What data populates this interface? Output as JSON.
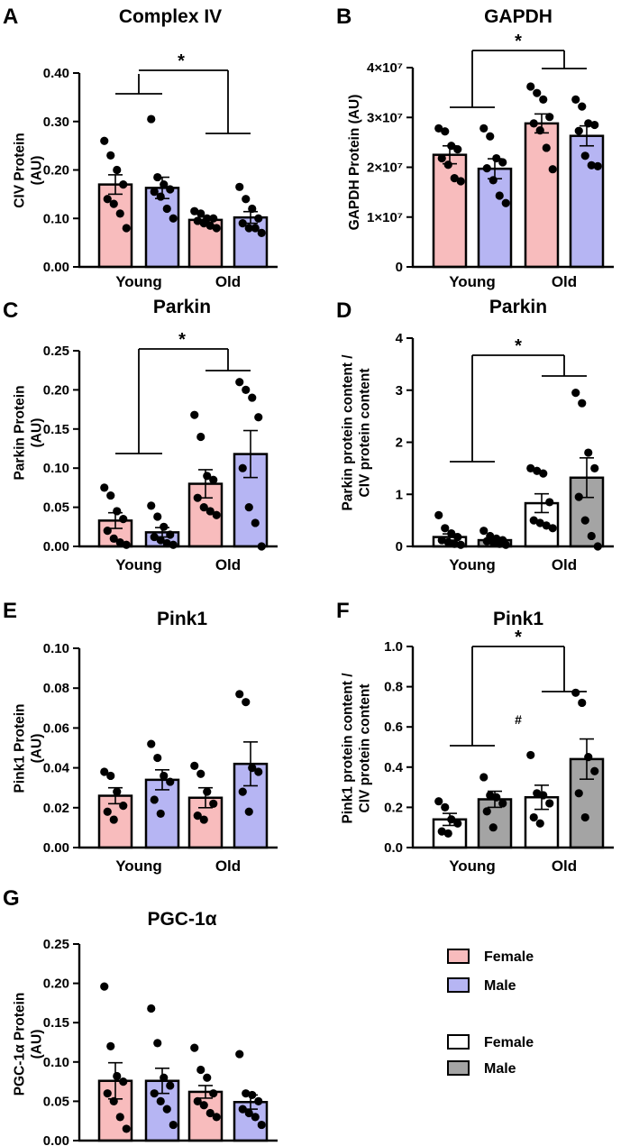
{
  "figure": {
    "legend": {
      "entries": [
        {
          "label": "Female",
          "color": "#f8bcbd"
        },
        {
          "label": "Male",
          "color": "#b6b5f3"
        },
        {
          "label": "Female",
          "color": "#ffffff"
        },
        {
          "label": "Male",
          "color": "#a4a4a4"
        }
      ]
    },
    "colors": {
      "female": "#f8bcbd",
      "male": "#b6b5f3",
      "white": "#ffffff",
      "gray": "#a4a4a4",
      "ink": "#000000"
    }
  },
  "chart_data": [
    {
      "panel": "A",
      "type": "bar",
      "title": "Complex IV",
      "ylabel": [
        "CIV Protein",
        "(AU)"
      ],
      "ylim": [
        0,
        0.4
      ],
      "yticks": [
        0,
        0.1,
        0.2,
        0.3,
        0.4
      ],
      "ytick_labels": [
        "0.00",
        "0.10",
        "0.20",
        "0.30",
        "0.40"
      ],
      "xgroups": [
        "Young",
        "Old"
      ],
      "annotations": [
        {
          "text": "*"
        }
      ],
      "bars": [
        {
          "series": "Female",
          "group": "Young",
          "mean": 0.17,
          "sem": 0.02,
          "color": "#f8bcbd",
          "points": [
            0.26,
            0.23,
            0.2,
            0.17,
            0.14,
            0.13,
            0.11,
            0.08
          ]
        },
        {
          "series": "Male",
          "group": "Young",
          "mean": 0.163,
          "sem": 0.022,
          "color": "#b6b5f3",
          "points": [
            0.305,
            0.185,
            0.17,
            0.16,
            0.155,
            0.145,
            0.12,
            0.1
          ]
        },
        {
          "series": "Female",
          "group": "Old",
          "mean": 0.097,
          "sem": 0.006,
          "color": "#f8bcbd",
          "points": [
            0.115,
            0.11,
            0.1,
            0.1,
            0.095,
            0.09,
            0.085,
            0.08
          ]
        },
        {
          "series": "Male",
          "group": "Old",
          "mean": 0.102,
          "sem": 0.012,
          "color": "#b6b5f3",
          "points": [
            0.165,
            0.14,
            0.12,
            0.1,
            0.09,
            0.08,
            0.08,
            0.07
          ]
        }
      ]
    },
    {
      "panel": "B",
      "type": "bar",
      "title": "GAPDH",
      "ylabel": [
        "GAPDH Protein (AU)"
      ],
      "ylim": [
        0,
        40000000
      ],
      "yticks": [
        0,
        10000000,
        20000000,
        30000000,
        40000000
      ],
      "ytick_labels": [
        "0",
        "1×10⁷",
        "2×10⁷",
        "3×10⁷",
        "4×10⁷"
      ],
      "xgroups": [
        "Young",
        "Old"
      ],
      "annotations": [
        {
          "text": "*"
        }
      ],
      "bars": [
        {
          "series": "Female",
          "group": "Young",
          "mean": 22500000,
          "sem": 1800000,
          "color": "#f8bcbd",
          "points": [
            27800000,
            27200000,
            24300000,
            23600000,
            21800000,
            20500000,
            17800000,
            17200000
          ]
        },
        {
          "series": "Male",
          "group": "Young",
          "mean": 19700000,
          "sem": 2000000,
          "color": "#b6b5f3",
          "points": [
            27800000,
            26200000,
            21800000,
            21000000,
            19800000,
            17400000,
            14300000,
            12800000
          ]
        },
        {
          "series": "Female",
          "group": "Old",
          "mean": 28800000,
          "sem": 1900000,
          "color": "#f8bcbd",
          "points": [
            36200000,
            34900000,
            33600000,
            30100000,
            28800000,
            27400000,
            23900000,
            19600000
          ]
        },
        {
          "series": "Male",
          "group": "Old",
          "mean": 26300000,
          "sem": 2000000,
          "color": "#b6b5f3",
          "points": [
            33600000,
            32200000,
            28800000,
            28500000,
            27300000,
            22300000,
            20400000,
            20200000
          ]
        }
      ]
    },
    {
      "panel": "C",
      "type": "bar",
      "title": "Parkin",
      "ylabel": [
        "Parkin Protein",
        "(AU)"
      ],
      "ylim": [
        0,
        0.25
      ],
      "yticks": [
        0,
        0.05,
        0.1,
        0.15,
        0.2,
        0.25
      ],
      "ytick_labels": [
        "0.00",
        "0.05",
        "0.10",
        "0.15",
        "0.20",
        "0.25"
      ],
      "xgroups": [
        "Young",
        "Old"
      ],
      "annotations": [
        {
          "text": "*"
        }
      ],
      "bars": [
        {
          "series": "Female",
          "group": "Young",
          "mean": 0.033,
          "sem": 0.01,
          "color": "#f8bcbd",
          "points": [
            0.075,
            0.065,
            0.045,
            0.035,
            0.02,
            0.01,
            0.005,
            0.002
          ]
        },
        {
          "series": "Male",
          "group": "Young",
          "mean": 0.018,
          "sem": 0.006,
          "color": "#b6b5f3",
          "points": [
            0.052,
            0.038,
            0.025,
            0.015,
            0.012,
            0.008,
            0.004,
            0.002
          ]
        },
        {
          "series": "Female",
          "group": "Old",
          "mean": 0.08,
          "sem": 0.018,
          "color": "#f8bcbd",
          "points": [
            0.168,
            0.14,
            0.09,
            0.085,
            0.062,
            0.05,
            0.045,
            0.04
          ]
        },
        {
          "series": "Male",
          "group": "Old",
          "mean": 0.118,
          "sem": 0.03,
          "color": "#b6b5f3",
          "points": [
            0.21,
            0.2,
            0.19,
            0.165,
            0.1,
            0.05,
            0.03,
            0.0
          ]
        }
      ]
    },
    {
      "panel": "D",
      "type": "bar",
      "title": "Parkin",
      "ylabel": [
        "Parkin protein content /",
        "CIV protein content"
      ],
      "ylim": [
        0,
        4
      ],
      "yticks": [
        0,
        1,
        2,
        3,
        4
      ],
      "ytick_labels": [
        "0",
        "1",
        "2",
        "3",
        "4"
      ],
      "xgroups": [
        "Young",
        "Old"
      ],
      "annotations": [
        {
          "text": "*"
        }
      ],
      "bars": [
        {
          "series": "Female",
          "group": "Young",
          "mean": 0.18,
          "sem": 0.06,
          "color": "#ffffff",
          "points": [
            0.6,
            0.35,
            0.25,
            0.18,
            0.12,
            0.08,
            0.05,
            0.03
          ]
        },
        {
          "series": "Male",
          "group": "Young",
          "mean": 0.12,
          "sem": 0.03,
          "color": "#a4a4a4",
          "points": [
            0.3,
            0.2,
            0.15,
            0.12,
            0.1,
            0.08,
            0.05,
            0.03
          ]
        },
        {
          "series": "Female",
          "group": "Old",
          "mean": 0.83,
          "sem": 0.18,
          "color": "#ffffff",
          "points": [
            1.5,
            1.45,
            1.4,
            0.85,
            0.5,
            0.45,
            0.4,
            0.35
          ]
        },
        {
          "series": "Male",
          "group": "Old",
          "mean": 1.32,
          "sem": 0.38,
          "color": "#a4a4a4",
          "points": [
            2.95,
            2.75,
            1.8,
            1.5,
            0.95,
            0.5,
            0.2,
            0.0
          ]
        }
      ]
    },
    {
      "panel": "E",
      "type": "bar",
      "title": "Pink1",
      "ylabel": [
        "Pink1 Protein",
        "(AU)"
      ],
      "ylim": [
        0,
        0.1
      ],
      "yticks": [
        0,
        0.02,
        0.04,
        0.06,
        0.08,
        0.1
      ],
      "ytick_labels": [
        "0.00",
        "0.02",
        "0.04",
        "0.06",
        "0.08",
        "0.10"
      ],
      "xgroups": [
        "Young",
        "Old"
      ],
      "annotations": [],
      "bars": [
        {
          "series": "Female",
          "group": "Young",
          "mean": 0.026,
          "sem": 0.004,
          "color": "#f8bcbd",
          "points": [
            0.038,
            0.036,
            0.028,
            0.021,
            0.018,
            0.014
          ]
        },
        {
          "series": "Male",
          "group": "Young",
          "mean": 0.034,
          "sem": 0.005,
          "color": "#b6b5f3",
          "points": [
            0.052,
            0.045,
            0.036,
            0.033,
            0.024,
            0.017
          ]
        },
        {
          "series": "Female",
          "group": "Old",
          "mean": 0.025,
          "sem": 0.005,
          "color": "#f8bcbd",
          "points": [
            0.041,
            0.037,
            0.028,
            0.022,
            0.016,
            0.014
          ]
        },
        {
          "series": "Male",
          "group": "Old",
          "mean": 0.042,
          "sem": 0.011,
          "color": "#b6b5f3",
          "points": [
            0.077,
            0.073,
            0.04,
            0.038,
            0.028,
            0.018
          ]
        }
      ]
    },
    {
      "panel": "F",
      "type": "bar",
      "title": "Pink1",
      "ylabel": [
        "Pink1 protein content /",
        "CIV protein content"
      ],
      "ylim": [
        0,
        1.0
      ],
      "yticks": [
        0,
        0.2,
        0.4,
        0.6,
        0.8,
        1.0
      ],
      "ytick_labels": [
        "0.0",
        "0.2",
        "0.4",
        "0.6",
        "0.8",
        "1.0"
      ],
      "xgroups": [
        "Young",
        "Old"
      ],
      "annotations": [
        {
          "text": "*"
        },
        {
          "text": "#"
        }
      ],
      "bars": [
        {
          "series": "Female",
          "group": "Young",
          "mean": 0.14,
          "sem": 0.03,
          "color": "#ffffff",
          "points": [
            0.23,
            0.2,
            0.14,
            0.12,
            0.08,
            0.07
          ]
        },
        {
          "series": "Male",
          "group": "Young",
          "mean": 0.24,
          "sem": 0.04,
          "color": "#a4a4a4",
          "points": [
            0.35,
            0.26,
            0.25,
            0.22,
            0.18,
            0.1
          ]
        },
        {
          "series": "Female",
          "group": "Old",
          "mean": 0.25,
          "sem": 0.06,
          "color": "#ffffff",
          "points": [
            0.46,
            0.27,
            0.26,
            0.22,
            0.15,
            0.12
          ]
        },
        {
          "series": "Male",
          "group": "Old",
          "mean": 0.44,
          "sem": 0.1,
          "color": "#a4a4a4",
          "points": [
            0.77,
            0.72,
            0.45,
            0.38,
            0.27,
            0.15
          ]
        }
      ]
    },
    {
      "panel": "G",
      "type": "bar",
      "title": "PGC-1α",
      "ylabel": [
        "PGC-1α Protein",
        "(AU)"
      ],
      "ylim": [
        0,
        0.25
      ],
      "yticks": [
        0,
        0.05,
        0.1,
        0.15,
        0.2,
        0.25
      ],
      "ytick_labels": [
        "0.00",
        "0.05",
        "0.10",
        "0.15",
        "0.20",
        "0.25"
      ],
      "xgroups": [
        "Young",
        "Old"
      ],
      "annotations": [],
      "bars": [
        {
          "series": "Female",
          "group": "Young",
          "mean": 0.076,
          "sem": 0.023,
          "color": "#f8bcbd",
          "points": [
            0.196,
            0.12,
            0.082,
            0.075,
            0.06,
            0.05,
            0.03,
            0.015
          ]
        },
        {
          "series": "Male",
          "group": "Young",
          "mean": 0.076,
          "sem": 0.016,
          "color": "#b6b5f3",
          "points": [
            0.168,
            0.124,
            0.08,
            0.07,
            0.06,
            0.05,
            0.04,
            0.02
          ]
        },
        {
          "series": "Female",
          "group": "Old",
          "mean": 0.062,
          "sem": 0.008,
          "color": "#f8bcbd",
          "points": [
            0.118,
            0.09,
            0.08,
            0.06,
            0.05,
            0.045,
            0.035,
            0.03
          ]
        },
        {
          "series": "Male",
          "group": "Old",
          "mean": 0.049,
          "sem": 0.009,
          "color": "#b6b5f3",
          "points": [
            0.11,
            0.06,
            0.058,
            0.05,
            0.04,
            0.035,
            0.03,
            0.02
          ]
        }
      ]
    }
  ]
}
